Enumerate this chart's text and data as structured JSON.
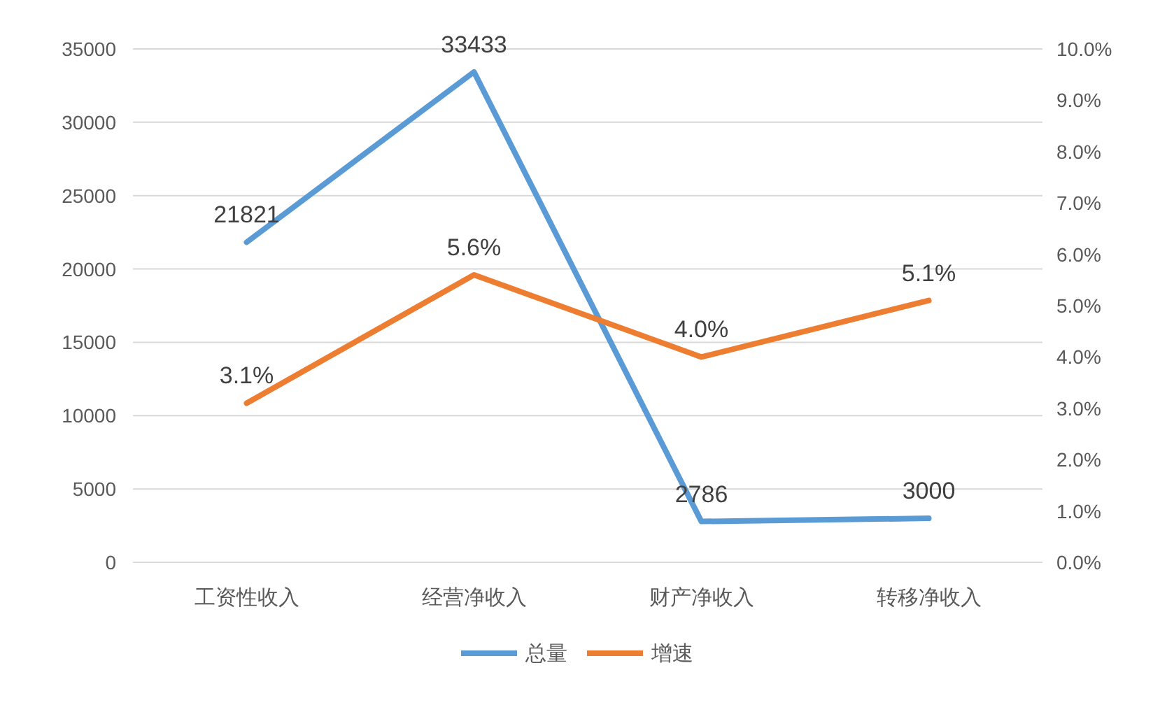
{
  "chart_data": {
    "type": "line",
    "categories": [
      "工资性收入",
      "经营净收入",
      "财产净收入",
      "转移净收入"
    ],
    "series": [
      {
        "name": "总量",
        "color": "#5b9bd5",
        "axis": "y",
        "values": [
          21821,
          33433,
          2786,
          3000
        ],
        "value_labels": [
          "21821",
          "33433",
          "2786",
          "3000"
        ]
      },
      {
        "name": "增速",
        "color": "#ed7d31",
        "axis": "y2",
        "values": [
          3.1,
          5.6,
          4.0,
          5.1
        ],
        "value_labels": [
          "3.1%",
          "5.6%",
          "4.0%",
          "5.1%"
        ]
      }
    ],
    "ylim": [
      0,
      35000
    ],
    "yticks": [
      0,
      5000,
      10000,
      15000,
      20000,
      25000,
      30000,
      35000
    ],
    "y2lim": [
      0,
      10
    ],
    "y2ticks": [
      {
        "value": 0,
        "label": "0.0%"
      },
      {
        "value": 1,
        "label": "1.0%"
      },
      {
        "value": 2,
        "label": "2.0%"
      },
      {
        "value": 3,
        "label": "3.0%"
      },
      {
        "value": 4,
        "label": "4.0%"
      },
      {
        "value": 5,
        "label": "5.0%"
      },
      {
        "value": 6,
        "label": "6.0%"
      },
      {
        "value": 7,
        "label": "7.0%"
      },
      {
        "value": 8,
        "label": "8.0%"
      },
      {
        "value": 9,
        "label": "9.0%"
      },
      {
        "value": 10,
        "label": "10.0%"
      }
    ],
    "grid": "y",
    "legend": "bottom"
  }
}
